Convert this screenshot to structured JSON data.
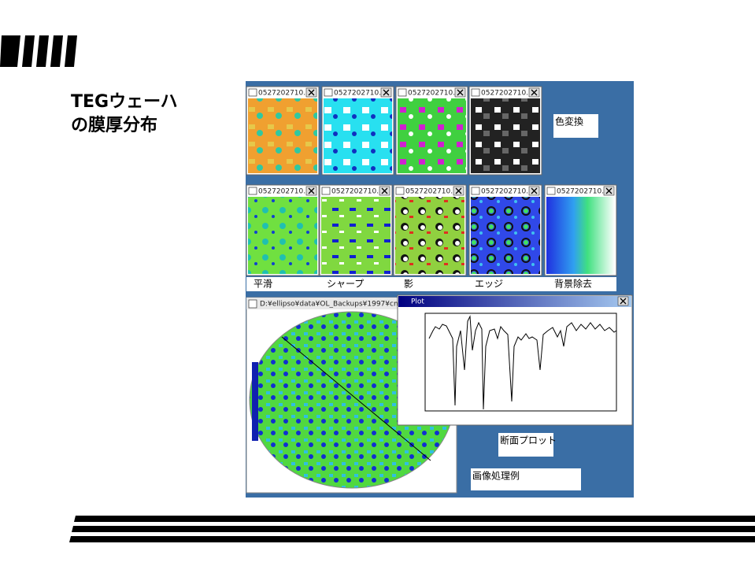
{
  "heading": {
    "line1": "TEGウェーハ",
    "line2": "の膜厚分布"
  },
  "windows": [
    {
      "title": "0527202710..."
    },
    {
      "title": "0527202710..."
    },
    {
      "title": "0527202710..."
    },
    {
      "title": "0527202710..."
    },
    {
      "title": "0527202710..."
    },
    {
      "title": "0527202710..."
    },
    {
      "title": "0527202710..."
    },
    {
      "title": "0527202710..."
    },
    {
      "title": "0527202710..."
    }
  ],
  "wafer_window": {
    "title": "D:¥ellipso¥data¥OL_Backups¥1997¥cm"
  },
  "plot_window": {
    "title": "Plot"
  },
  "labels": {
    "color_conversion": "色変換",
    "smoothing": "平滑",
    "sharpen": "シャープ",
    "shadow": "影",
    "edge": "エッジ",
    "background_removal": "背景除去",
    "cross_section": "断面プロット",
    "example": "画像処理例"
  }
}
